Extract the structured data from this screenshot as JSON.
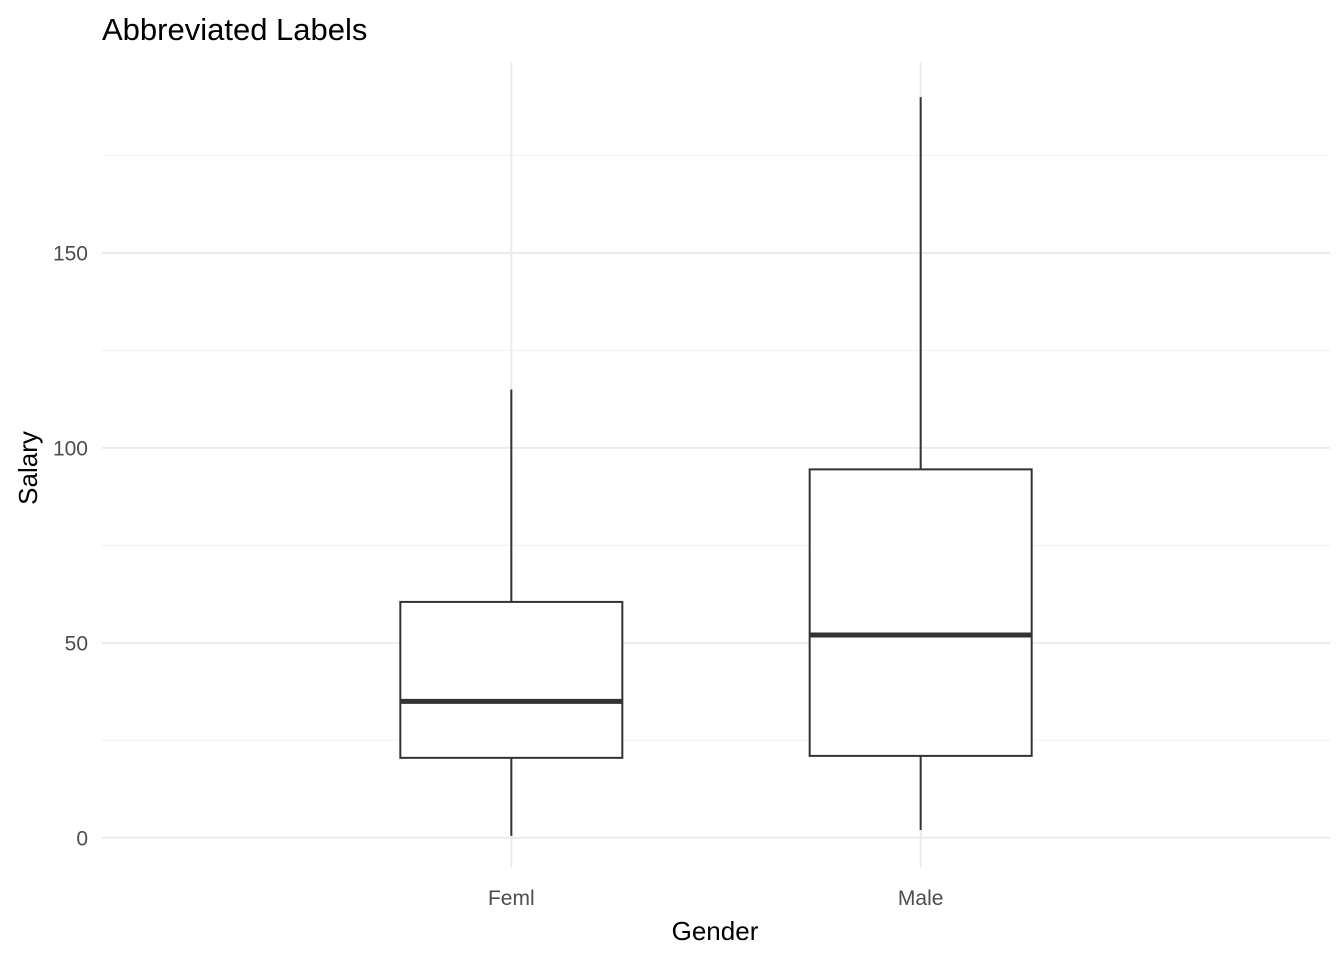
{
  "chart_data": {
    "type": "boxplot",
    "title": "Abbreviated Labels",
    "xlabel": "Gender",
    "ylabel": "Salary",
    "categories": [
      "Feml",
      "Male"
    ],
    "yticks": [
      0,
      50,
      100,
      150
    ],
    "ylim": [
      -7.5,
      199
    ],
    "grid": true,
    "series": [
      {
        "category": "Feml",
        "min": 0.5,
        "q1": 20.5,
        "median": 35,
        "q3": 60.5,
        "max": 115
      },
      {
        "category": "Male",
        "min": 2,
        "q1": 21,
        "median": 52,
        "q3": 94.5,
        "max": 190
      }
    ]
  }
}
